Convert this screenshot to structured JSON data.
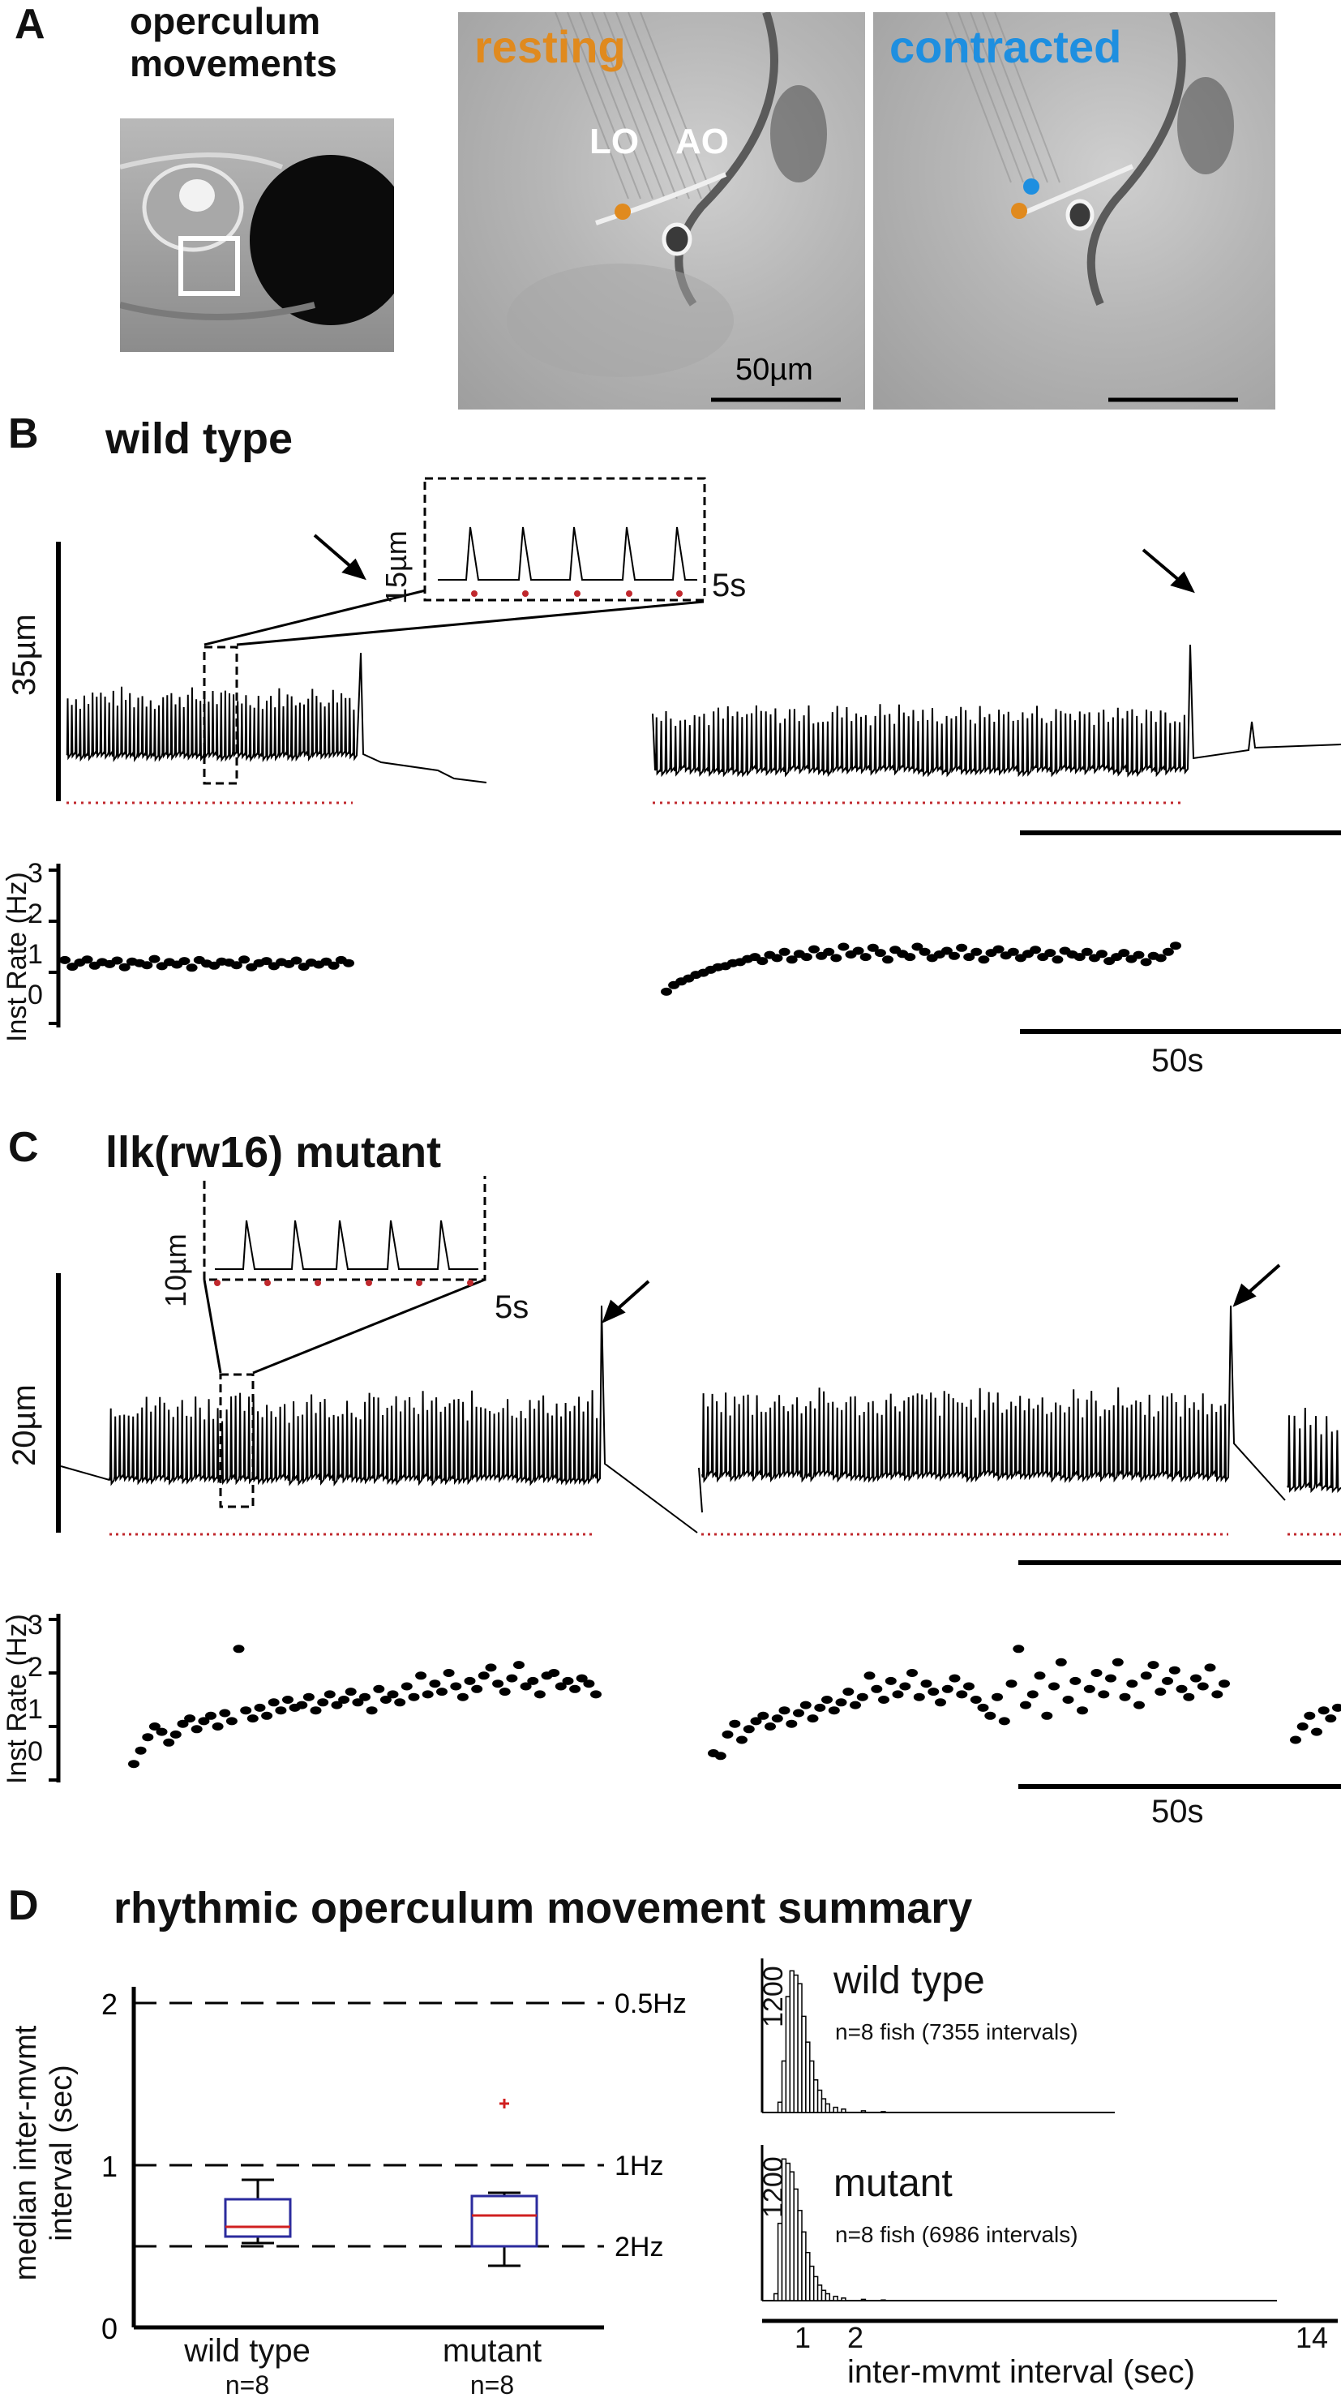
{
  "panelA": {
    "letter": "A",
    "title_line1": "operculum",
    "title_line2": "movements",
    "resting_label": "resting",
    "contracted_label": "contracted",
    "lo_label": "LO",
    "ao_label": "AO",
    "scalebar_label": "50µm",
    "colors": {
      "resting": "#e08a1e",
      "contracted": "#1e8fe0"
    }
  },
  "panelB": {
    "letter": "B",
    "title": "wild type",
    "trace_scale": "35µm",
    "inset_scale": "15µm",
    "inset_time": "5s",
    "rate_axis_label": "Inst Rate (Hz)",
    "rate_ticks": [
      "3",
      "2",
      "1",
      "0"
    ],
    "time_scale": "50s"
  },
  "panelC": {
    "letter": "C",
    "title": "llk(rw16) mutant",
    "trace_scale": "20µm",
    "inset_scale": "10µm",
    "inset_time": "5s",
    "rate_axis_label": "Inst Rate (Hz)",
    "rate_ticks": [
      "3",
      "2",
      "1",
      "0"
    ],
    "time_scale": "50s"
  },
  "panelD": {
    "letter": "D",
    "title": "rhythmic operculum movement summary",
    "ylabel_line1": "median inter-mvmt",
    "ylabel_line2": "interval (sec)",
    "yticks": [
      "2",
      "1",
      "0"
    ],
    "ref_lines": [
      "0.5Hz",
      "1Hz",
      "2Hz"
    ],
    "groups": [
      "wild type",
      "mutant"
    ],
    "ns": [
      "n=8",
      "n=8"
    ],
    "hist_top_title": "wild type",
    "hist_top_n": "n=8 fish (7355 intervals)",
    "hist_bottom_title": "mutant",
    "hist_bottom_n": "n=8 fish (6986 intervals)",
    "hist_ytick": "1200",
    "hist_xticks": [
      "1",
      "2",
      "14"
    ],
    "hist_xlabel": "inter-mvmt interval (sec)"
  },
  "chart_data": [
    {
      "type": "box",
      "ylabel": "median inter-mvmt interval (sec)",
      "ylim": [
        0,
        2
      ],
      "reference_lines": [
        {
          "y": 2,
          "label": "0.5Hz"
        },
        {
          "y": 1,
          "label": "1Hz"
        },
        {
          "y": 0.5,
          "label": "2Hz"
        }
      ],
      "categories": [
        "wild type",
        "mutant"
      ],
      "boxes": [
        {
          "name": "wild type",
          "whisker_low": 0.52,
          "q1": 0.56,
          "median": 0.62,
          "q3": 0.79,
          "whisker_high": 0.91,
          "outliers": []
        },
        {
          "name": "mutant",
          "whisker_low": 0.38,
          "q1": 0.5,
          "median": 0.69,
          "q3": 0.81,
          "whisker_high": 0.83,
          "outliers": [
            1.38
          ]
        }
      ]
    },
    {
      "type": "bar",
      "title": "wild type",
      "xlabel": "inter-mvmt interval (sec)",
      "xlim": [
        0,
        14
      ],
      "bins_sec": [
        0.4,
        0.5,
        0.6,
        0.7,
        0.8,
        0.9,
        1.0,
        1.1,
        1.2,
        1.3,
        1.4,
        1.5,
        1.6,
        1.8,
        2.0,
        2.5,
        3.0
      ],
      "counts": [
        120,
        600,
        1350,
        1650,
        1600,
        1500,
        1120,
        820,
        600,
        380,
        260,
        160,
        100,
        60,
        40,
        20,
        10
      ]
    },
    {
      "type": "bar",
      "title": "mutant",
      "xlabel": "inter-mvmt interval (sec)",
      "xlim": [
        0,
        14
      ],
      "bins_sec": [
        0.3,
        0.4,
        0.5,
        0.6,
        0.7,
        0.8,
        0.9,
        1.0,
        1.1,
        1.2,
        1.3,
        1.4,
        1.5,
        1.6,
        1.8,
        2.0,
        2.5,
        3.0
      ],
      "counts": [
        80,
        900,
        1650,
        1600,
        1500,
        1300,
        1050,
        800,
        560,
        400,
        280,
        180,
        120,
        80,
        50,
        30,
        15,
        8
      ]
    },
    {
      "type": "scatter",
      "title": "wild type",
      "ylabel": "Inst Rate (Hz)",
      "ylim": [
        0,
        3
      ],
      "series": [
        {
          "values": [
            1.24,
            1.11,
            1.19,
            1.25,
            1.13,
            1.2,
            1.16,
            1.23,
            1.1,
            1.21,
            1.18,
            1.14,
            1.26,
            1.12,
            1.2,
            1.15,
            1.22,
            1.09,
            1.24,
            1.17,
            1.13,
            1.21,
            1.19,
            1.14,
            1.25,
            1.1,
            1.18,
            1.22,
            1.12,
            1.2,
            1.16,
            1.23,
            1.11,
            1.19,
            1.15,
            1.21,
            1.13,
            1.24,
            1.18
          ]
        },
        {
          "values": [
            0.62,
            0.75,
            0.82,
            0.88,
            0.95,
            0.99,
            1.05,
            1.1,
            1.12,
            1.18,
            1.2,
            1.26,
            1.3,
            1.22,
            1.34,
            1.28,
            1.4,
            1.25,
            1.36,
            1.3,
            1.45,
            1.32,
            1.4,
            1.28,
            1.5,
            1.35,
            1.42,
            1.3,
            1.48,
            1.38,
            1.25,
            1.44,
            1.36,
            1.3,
            1.5,
            1.4,
            1.28,
            1.35,
            1.42,
            1.32,
            1.48,
            1.3,
            1.4,
            1.25,
            1.38,
            1.45,
            1.33,
            1.4,
            1.28,
            1.36,
            1.44,
            1.3,
            1.38,
            1.25,
            1.42,
            1.35,
            1.3,
            1.4,
            1.28,
            1.36,
            1.22,
            1.3,
            1.38,
            1.26,
            1.34,
            1.2,
            1.32,
            1.28,
            1.4,
            1.52
          ]
        }
      ]
    },
    {
      "type": "scatter",
      "title": "llk(rw16) mutant",
      "ylabel": "Inst Rate (Hz)",
      "ylim": [
        0,
        3
      ],
      "series": [
        {
          "values": [
            0.3,
            0.55,
            0.8,
            1.0,
            0.9,
            0.7,
            0.85,
            1.05,
            1.15,
            0.95,
            1.1,
            1.2,
            1.0,
            1.25,
            1.1,
            2.45,
            1.3,
            1.15,
            1.35,
            1.2,
            1.45,
            1.3,
            1.5,
            1.35,
            1.4,
            1.55,
            1.3,
            1.45,
            1.6,
            1.4,
            1.5,
            1.65,
            1.45,
            1.55,
            1.3,
            1.7,
            1.5,
            1.6,
            1.45,
            1.75,
            1.55,
            1.95,
            1.6,
            1.8,
            1.65,
            2.0,
            1.75,
            1.55,
            1.85,
            1.7,
            1.95,
            2.1,
            1.8,
            1.65,
            1.9,
            2.15,
            1.75,
            1.85,
            1.6,
            1.95,
            2.0,
            1.75,
            1.85,
            1.7,
            1.9,
            1.8,
            1.6
          ]
        },
        {
          "values": [
            0.5,
            0.45,
            0.85,
            1.05,
            0.75,
            0.95,
            1.1,
            1.2,
            1.0,
            1.15,
            1.3,
            1.05,
            1.25,
            1.4,
            1.15,
            1.35,
            1.5,
            1.3,
            1.45,
            1.65,
            1.4,
            1.55,
            1.95,
            1.7,
            1.5,
            1.85,
            1.6,
            1.75,
            2.0,
            1.55,
            1.8,
            1.65,
            1.45,
            1.7,
            1.9,
            1.6,
            1.75,
            1.5,
            1.35,
            1.2,
            1.55,
            1.1,
            1.8,
            2.45,
            1.4,
            1.6,
            1.95,
            1.2,
            1.75,
            2.2,
            1.5,
            1.85,
            1.3,
            1.7,
            2.0,
            1.6,
            1.9,
            2.2,
            1.55,
            1.8,
            1.4,
            1.95,
            2.15,
            1.65,
            1.85,
            2.05,
            1.7,
            1.55,
            1.9,
            1.75,
            2.1,
            1.6,
            1.8
          ]
        },
        {
          "values": [
            0.75,
            1.0,
            1.2,
            0.9,
            1.3,
            1.15,
            1.35
          ]
        }
      ]
    }
  ]
}
